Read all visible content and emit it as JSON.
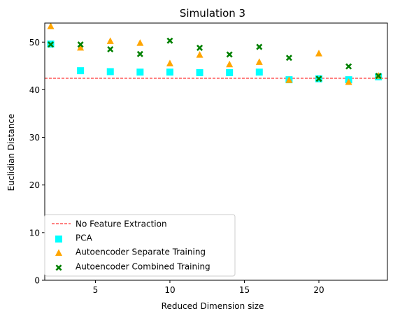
{
  "chart_data": {
    "type": "scatter",
    "title": "Simulation 3",
    "xlabel": "Reduced Dimension size",
    "ylabel": "Euclidian Distance",
    "xlim": [
      1.6,
      24.6
    ],
    "ylim": [
      0,
      54
    ],
    "xticks": [
      5,
      10,
      15,
      20
    ],
    "yticks": [
      0,
      10,
      20,
      30,
      40,
      50
    ],
    "grid": false,
    "legend_position": "lower-left",
    "x": [
      2,
      4,
      6,
      8,
      10,
      12,
      14,
      16,
      18,
      20,
      22,
      24
    ],
    "baseline": {
      "name": "No Feature Extraction",
      "value": 42.4,
      "color": "#ff0000"
    },
    "series": [
      {
        "name": "PCA",
        "marker": "square",
        "color": "#00ffff",
        "values": [
          49.6,
          44.0,
          43.8,
          43.7,
          43.7,
          43.6,
          43.6,
          43.7,
          42.1,
          42.3,
          42.1,
          42.7
        ]
      },
      {
        "name": "Autoencoder Separate Training",
        "marker": "triangle",
        "color": "#ffa500",
        "values": [
          53.3,
          48.8,
          50.2,
          49.8,
          45.5,
          47.3,
          45.3,
          45.8,
          42.0,
          47.6,
          41.6,
          42.9
        ]
      },
      {
        "name": "Autoencoder Combined Training",
        "marker": "x",
        "color": "#008000",
        "values": [
          49.5,
          49.5,
          48.5,
          47.5,
          50.3,
          48.8,
          47.4,
          49.0,
          46.7,
          42.3,
          44.9,
          42.9
        ]
      }
    ]
  }
}
